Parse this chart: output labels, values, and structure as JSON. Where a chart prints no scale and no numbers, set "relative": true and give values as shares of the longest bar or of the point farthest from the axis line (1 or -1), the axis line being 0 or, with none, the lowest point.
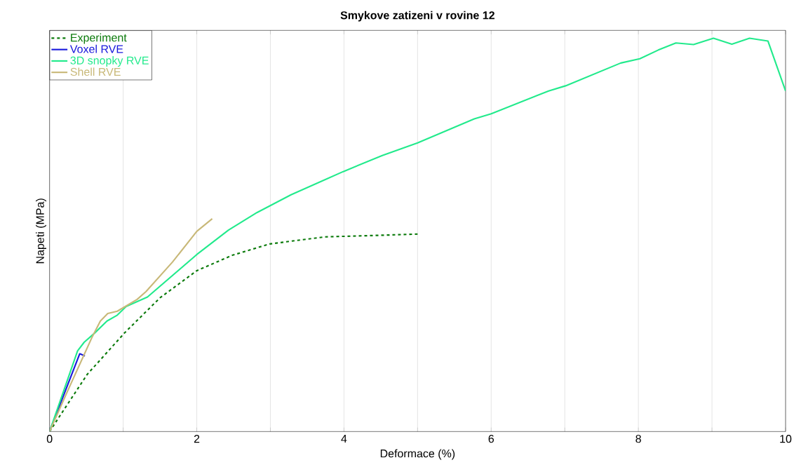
{
  "chart_data": {
    "type": "line",
    "title": "Smykove zatizeni v rovine 12",
    "xlabel": "Deformace (%)",
    "ylabel": "Napeti (MPa)",
    "relative": true,
    "xlim": [
      0,
      10
    ],
    "xticks": [
      0,
      {
        "value": 1,
        "label": null
      },
      2,
      {
        "value": 3,
        "label": null
      },
      4,
      {
        "value": 5,
        "label": null
      },
      6,
      {
        "value": 7,
        "label": null
      },
      8,
      {
        "value": 9,
        "label": null
      },
      10
    ],
    "grid": true,
    "legend": "top left",
    "marker": "none",
    "series": [
      {
        "name": "Experiment",
        "color": "#0a7a0a",
        "line_style": "dashed",
        "x": [
          0,
          0.51,
          1.02,
          1.5,
          2.0,
          2.48,
          2.99,
          3.74,
          4.32,
          5.0
        ],
        "values": [
          0,
          0.145,
          0.251,
          0.34,
          0.409,
          0.448,
          0.477,
          0.495,
          0.498,
          0.502
        ]
      },
      {
        "name": "Voxel RVE",
        "color": "#1a1adc",
        "line_style": "solid",
        "x": [
          0,
          0.41,
          0.48
        ],
        "values": [
          0,
          0.198,
          0.192
        ]
      },
      {
        "name": "3D snopky RVE",
        "color": "#22ea8c",
        "line_style": "solid",
        "x": [
          0,
          0.38,
          0.47,
          0.61,
          0.78,
          0.92,
          1.04,
          1.33,
          2.0,
          2.43,
          2.82,
          3.28,
          3.99,
          4.52,
          5.0,
          5.77,
          6.0,
          6.78,
          7.01,
          7.76,
          8.02,
          8.27,
          8.51,
          8.75,
          9.02,
          9.27,
          9.51,
          9.76,
          10.0
        ],
        "values": [
          0,
          0.205,
          0.227,
          0.25,
          0.281,
          0.296,
          0.318,
          0.342,
          0.45,
          0.512,
          0.557,
          0.602,
          0.661,
          0.702,
          0.734,
          0.795,
          0.808,
          0.866,
          0.879,
          0.937,
          0.948,
          0.97,
          0.988,
          0.984,
          1.0,
          0.985,
          1.0,
          0.993,
          0.866
        ]
      },
      {
        "name": "Shell RVE",
        "color": "#c8b878",
        "line_style": "solid",
        "x": [
          0,
          0.24,
          0.58,
          0.69,
          0.79,
          0.92,
          1.19,
          1.31,
          1.67,
          2.0,
          2.21
        ],
        "values": [
          0,
          0.101,
          0.241,
          0.281,
          0.3,
          0.306,
          0.336,
          0.356,
          0.431,
          0.509,
          0.541
        ]
      }
    ]
  }
}
